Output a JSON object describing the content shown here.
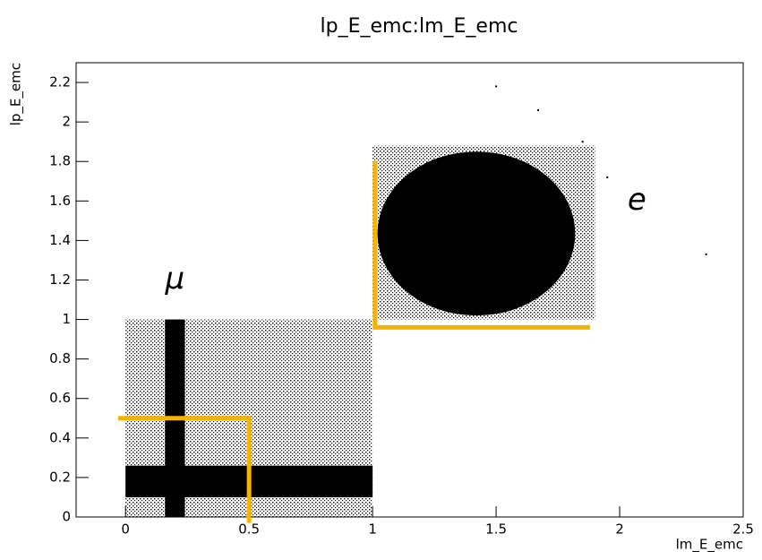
{
  "chart_data": {
    "type": "scatter",
    "title": "lp_E_emc:lm_E_emc",
    "x_label": "lm_E_emc",
    "y_label": "lp_E_emc",
    "xlim": [
      -0.2,
      2.5
    ],
    "ylim": [
      0,
      2.3
    ],
    "xticks": [
      0,
      0.5,
      1,
      1.5,
      2,
      2.5
    ],
    "yticks": [
      0,
      0.2,
      0.4,
      0.6,
      0.8,
      1,
      1.2,
      1.4,
      1.6,
      1.8,
      2,
      2.2
    ],
    "color": "#000000",
    "x": [
      1.5,
      1.67,
      2.35,
      1.95,
      1.85
    ],
    "y": [
      2.18,
      2.06,
      1.33,
      1.72,
      1.9
    ],
    "clouds": [
      {
        "shape": "rect",
        "fill": "dotted",
        "x": [
          0,
          1
        ],
        "y": [
          0,
          1
        ]
      },
      {
        "shape": "rect",
        "fill": "dotted",
        "x": [
          1,
          1.9
        ],
        "y": [
          1,
          1.88
        ]
      },
      {
        "shape": "rect",
        "fill": "solid",
        "x": [
          0.16,
          0.24
        ],
        "y": [
          0,
          1
        ]
      },
      {
        "shape": "rect",
        "fill": "solid",
        "x": [
          0,
          1
        ],
        "y": [
          0.1,
          0.26
        ]
      },
      {
        "shape": "ellipse",
        "fill": "solid",
        "x": [
          1.02,
          1.82
        ],
        "y": [
          1.02,
          1.85
        ]
      }
    ],
    "cut_lines": {
      "color": "#f5b400",
      "lines": [
        {
          "x": [
            -0.03,
            0.5,
            0.5
          ],
          "y": [
            0.5,
            0.5,
            -0.03
          ]
        },
        {
          "x": [
            1.01,
            1.01,
            1.88
          ],
          "y": [
            1.8,
            0.96,
            0.96
          ]
        }
      ]
    },
    "annotations": [
      {
        "text": "μ",
        "x": 0.2,
        "y": 1.2
      },
      {
        "text": "e",
        "x": 2.07,
        "y": 1.6
      }
    ]
  }
}
